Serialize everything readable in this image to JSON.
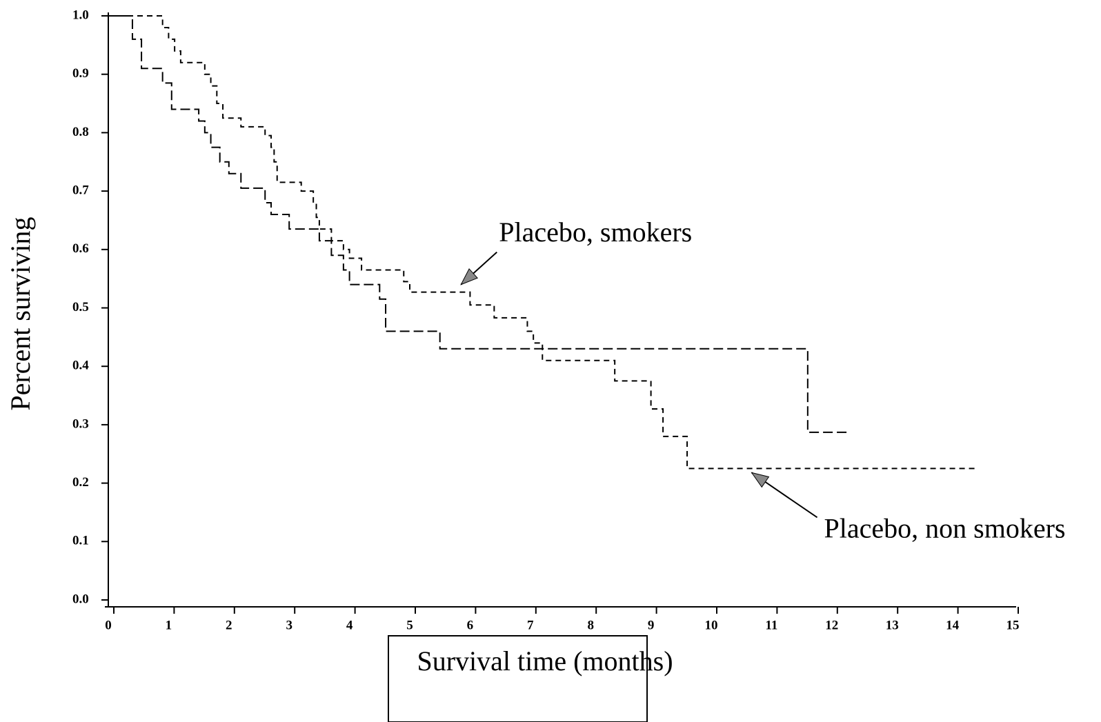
{
  "chart_data": {
    "type": "step",
    "x_label": "Survival time (months)",
    "y_label": "Percent surviving",
    "xlim": [
      0,
      15
    ],
    "ylim": [
      0,
      1
    ],
    "xticks": [
      0,
      1,
      2,
      3,
      4,
      5,
      6,
      7,
      8,
      9,
      10,
      11,
      12,
      13,
      14,
      15
    ],
    "yticks": [
      {
        "value": 0,
        "label": "0.0"
      },
      0.1,
      0.2,
      0.3,
      0.4,
      0.5,
      0.6,
      0.7,
      0.8,
      0.9,
      {
        "value": 1,
        "label": "1.0"
      }
    ],
    "series": [
      {
        "color": "#000000",
        "x": [
          0,
          0.9,
          1.0,
          1.1,
          1.2,
          1.6,
          1.7,
          1.8,
          1.9,
          2.2,
          2.6,
          2.7,
          2.75,
          2.8,
          3.2,
          3.4,
          3.45,
          3.5,
          3.7,
          3.9,
          4.0,
          4.2,
          4.9,
          5.0,
          6.0,
          6.4,
          6.95,
          7.05,
          7.2,
          8.4,
          9.0,
          9.2,
          9.6,
          14.4
        ],
        "values": [
          1.0,
          0.98,
          0.96,
          0.94,
          0.92,
          0.9,
          0.88,
          0.85,
          0.825,
          0.81,
          0.795,
          0.775,
          0.75,
          0.715,
          0.7,
          0.68,
          0.655,
          0.635,
          0.615,
          0.6,
          0.585,
          0.565,
          0.545,
          0.527,
          0.505,
          0.483,
          0.46,
          0.44,
          0.41,
          0.375,
          0.327,
          0.28,
          0.225,
          0.225
        ]
      },
      {
        "color": "#000000",
        "x": [
          0,
          0.4,
          0.55,
          0.9,
          1.05,
          1.5,
          1.6,
          1.7,
          1.85,
          2.0,
          2.2,
          2.6,
          2.7,
          3.0,
          3.5,
          3.7,
          3.9,
          4.0,
          4.5,
          4.6,
          5.5,
          11.6,
          12.3
        ],
        "values": [
          1.0,
          0.96,
          0.91,
          0.885,
          0.84,
          0.82,
          0.8,
          0.775,
          0.75,
          0.73,
          0.705,
          0.68,
          0.66,
          0.635,
          0.615,
          0.59,
          0.565,
          0.54,
          0.515,
          0.46,
          0.43,
          0.287,
          0.287
        ]
      }
    ],
    "annotations": [
      {
        "text": "Placebo, smokers",
        "x": 5.85,
        "y": 0.54
      },
      {
        "text": "Placebo, non smokers",
        "x": 10.67,
        "y": 0.218
      }
    ]
  }
}
